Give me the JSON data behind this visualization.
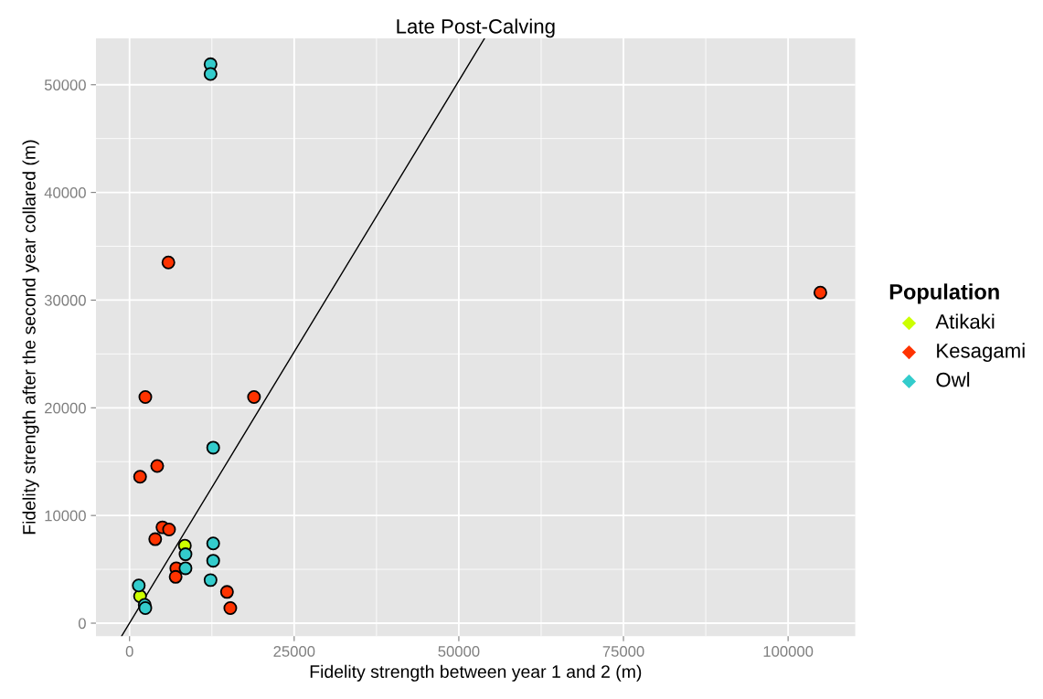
{
  "chart_data": {
    "type": "scatter",
    "title": "Late Post-Calving",
    "xlabel": "Fidelity strength between year 1 and 2 (m)",
    "ylabel": "Fidelity strength after the second year collared (m)",
    "legend_title": "Population",
    "xlim": [
      -5100,
      110200
    ],
    "ylim": [
      -1200,
      54300
    ],
    "xticks": [
      0,
      25000,
      50000,
      75000,
      100000
    ],
    "yticks": [
      0,
      10000,
      20000,
      30000,
      40000,
      50000
    ],
    "grid": true,
    "legend": "right",
    "series": [
      {
        "name": "Atikaki",
        "marker": "circle",
        "color": "#ccff00",
        "x": [
          8400,
          1600
        ],
        "values": [
          7200,
          2500
        ]
      },
      {
        "name": "Kesagami",
        "marker": "circle",
        "color": "#ff3300",
        "x": [
          4200,
          1600,
          5000,
          6000,
          3900,
          7100,
          7000,
          14800,
          15300,
          5900,
          2400,
          18900,
          104900
        ],
        "values": [
          14600,
          13600,
          8900,
          8700,
          7800,
          5100,
          4300,
          2900,
          1400,
          33500,
          21000,
          21000,
          30700
        ]
      },
      {
        "name": "Owl",
        "marker": "circle",
        "color": "#33cccc",
        "x": [
          12700,
          8500,
          12700,
          12700,
          8500,
          12300,
          1400,
          2300,
          2400,
          12300,
          12300
        ],
        "values": [
          16300,
          6400,
          7400,
          5800,
          5100,
          4000,
          3500,
          1700,
          1400,
          51900,
          51000
        ]
      },
      {
        "type": "line",
        "marker": "none",
        "color": "#000000",
        "x": [
          -1200,
          53900
        ],
        "values": [
          -1200,
          54300
        ]
      }
    ]
  }
}
